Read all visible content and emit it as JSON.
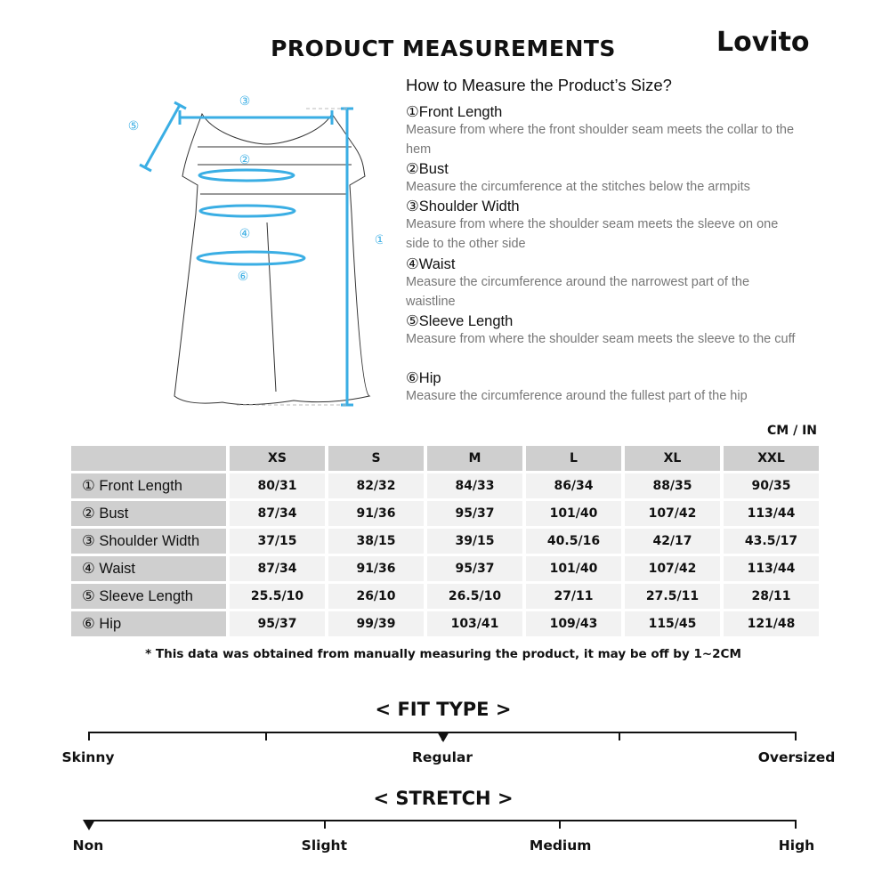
{
  "title": "PRODUCT MEASUREMENTS",
  "logo": "Lovito",
  "accent_color": "#3aaee4",
  "guide": {
    "heading": "How to Measure the Product’s Size?",
    "items": [
      {
        "title": "①Front Length",
        "desc": "Measure from where the front shoulder seam meets the collar to the hem"
      },
      {
        "title": "②Bust",
        "desc": "Measure the circumference at the stitches below the armpits"
      },
      {
        "title": "③Shoulder Width",
        "desc": "Measure from where the shoulder seam meets the sleeve on one side to the other side"
      },
      {
        "title": "④Waist",
        "desc": "Measure the circumference around the narrowest part of the waistline"
      },
      {
        "title": "⑤Sleeve Length",
        "desc": "Measure from where the shoulder seam meets the sleeve to the cuff"
      },
      {
        "title": "⑥Hip",
        "desc": "Measure the circumference around the fullest part of the hip"
      }
    ]
  },
  "diagram_labels": [
    "①",
    "②",
    "③",
    "④",
    "⑤",
    "⑥"
  ],
  "unit": "CM / IN",
  "table": {
    "headers": [
      "XS",
      "S",
      "M",
      "L",
      "XL",
      "XXL"
    ],
    "rows": [
      {
        "label": "① Front Length",
        "values": [
          "80/31",
          "82/32",
          "84/33",
          "86/34",
          "88/35",
          "90/35"
        ]
      },
      {
        "label": "② Bust",
        "values": [
          "87/34",
          "91/36",
          "95/37",
          "101/40",
          "107/42",
          "113/44"
        ]
      },
      {
        "label": "③ Shoulder Width",
        "values": [
          "37/15",
          "38/15",
          "39/15",
          "40.5/16",
          "42/17",
          "43.5/17"
        ]
      },
      {
        "label": "④ Waist",
        "values": [
          "87/34",
          "91/36",
          "95/37",
          "101/40",
          "107/42",
          "113/44"
        ]
      },
      {
        "label": "⑤ Sleeve Length",
        "values": [
          "25.5/10",
          "26/10",
          "26.5/10",
          "27/11",
          "27.5/11",
          "28/11"
        ]
      },
      {
        "label": "⑥ Hip",
        "values": [
          "95/37",
          "99/39",
          "103/41",
          "109/43",
          "115/45",
          "121/48"
        ]
      }
    ]
  },
  "note": "* This data was obtained from manually measuring the product, it may be off by 1~2CM",
  "fit_type": {
    "heading": "< FIT TYPE >",
    "labels": [
      "Skinny",
      "Regular",
      "Oversized"
    ],
    "selected_fraction": 0.5
  },
  "stretch": {
    "heading": "< STRETCH >",
    "labels": [
      "Non",
      "Slight",
      "Medium",
      "High"
    ],
    "selected_fraction": 0
  }
}
